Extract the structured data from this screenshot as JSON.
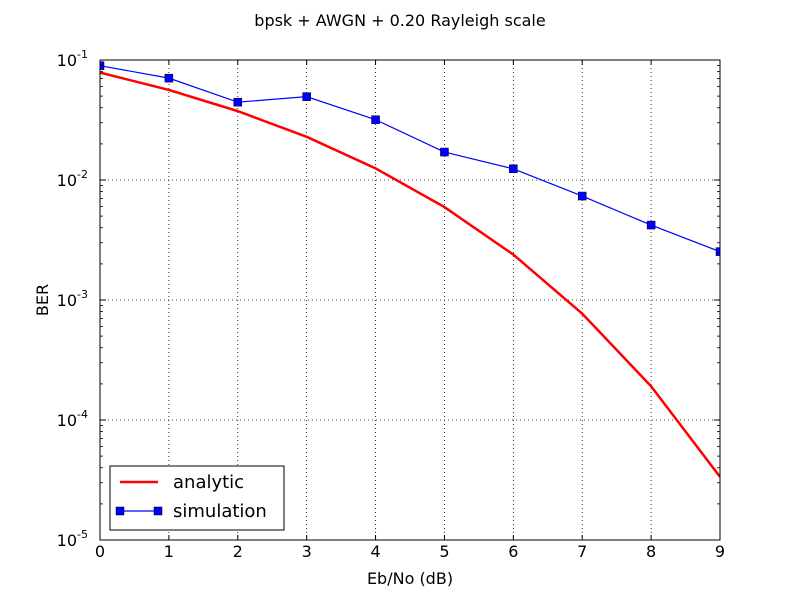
{
  "chart_data": {
    "type": "line",
    "title": "bpsk + AWGN + 0.20 Rayleigh scale",
    "xlabel": "Eb/No (dB)",
    "ylabel": "BER",
    "xlim": [
      0,
      9
    ],
    "ylim": [
      1e-05,
      0.1
    ],
    "yscale": "log",
    "grid": true,
    "legend_position": "lower-left",
    "x_ticks": [
      "0",
      "1",
      "2",
      "3",
      "4",
      "5",
      "6",
      "7",
      "8",
      "9"
    ],
    "y_ticks": [
      {
        "value": 0.1,
        "base": "10",
        "exp": "-1"
      },
      {
        "value": 0.01,
        "base": "10",
        "exp": "-2"
      },
      {
        "value": 0.001,
        "base": "10",
        "exp": "-3"
      },
      {
        "value": 0.0001,
        "base": "10",
        "exp": "-4"
      },
      {
        "value": 1e-05,
        "base": "10",
        "exp": "-5"
      }
    ],
    "x": [
      0,
      1,
      2,
      3,
      4,
      5,
      6,
      7,
      8,
      9
    ],
    "series": [
      {
        "name": "analytic",
        "color": "#ff0000",
        "style": "line",
        "values": [
          0.0786,
          0.0563,
          0.0375,
          0.0229,
          0.0125,
          0.00595,
          0.00239,
          0.00077,
          0.000191,
          3.36e-05
        ]
      },
      {
        "name": "simulation",
        "color": "#0000ff",
        "style": "line-square-markers",
        "values": [
          0.0897,
          0.0706,
          0.0445,
          0.0495,
          0.0318,
          0.0171,
          0.0124,
          0.00735,
          0.00421,
          0.00253
        ]
      }
    ]
  }
}
